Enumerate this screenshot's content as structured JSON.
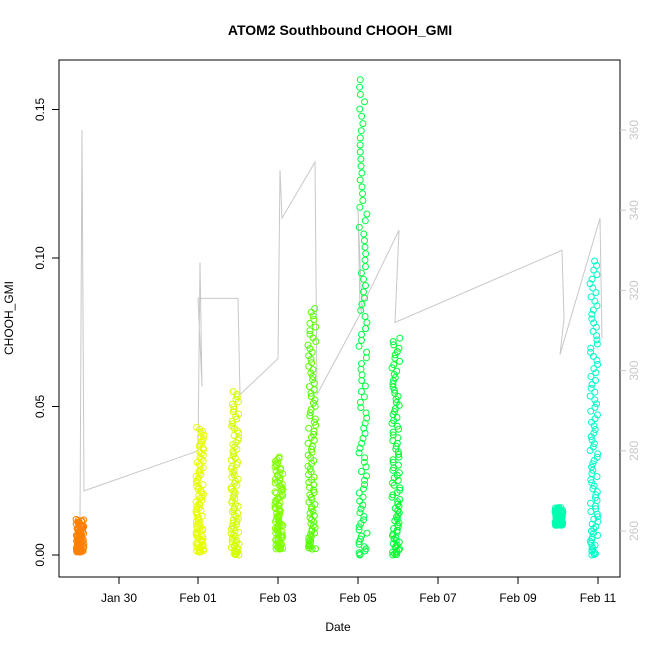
{
  "chart_data": {
    "type": "scatter",
    "title": "ATOM2 Southbound CHOOH_GMI",
    "xlabel": "Date",
    "ylabel": "CHOOH_GMI",
    "x_ticks": [
      "Jan 30",
      "Feb 01",
      "Feb 03",
      "Feb 05",
      "Feb 07",
      "Feb 09",
      "Feb 11"
    ],
    "xlim": [
      "2017-01-29",
      "2017-02-11.4"
    ],
    "ylim": [
      -0.007,
      0.167
    ],
    "y_ticks": [
      "0.00",
      "0.05",
      "0.10",
      "0.15"
    ],
    "y2_ticks": [
      "260",
      "280",
      "300",
      "320",
      "340",
      "360"
    ],
    "y2lim": [
      252,
      374
    ],
    "grid": false,
    "series": [
      {
        "date": "Jan 29",
        "color": "#FF8000",
        "min": 0.001,
        "max": 0.012
      },
      {
        "date": "Feb 01",
        "color": "#E6FF00",
        "min": 0.001,
        "max": 0.043
      },
      {
        "date": "Feb 01",
        "color": "#D4FF00",
        "min": 0.0,
        "max": 0.055
      },
      {
        "date": "Feb 03",
        "color": "#80FF00",
        "min": 0.002,
        "max": 0.033
      },
      {
        "date": "Feb 03",
        "color": "#55FF00",
        "min": 0.002,
        "max": 0.083
      },
      {
        "date": "Feb 05",
        "color": "#00FF40",
        "min": 0.0,
        "max": 0.16
      },
      {
        "date": "Feb 05",
        "color": "#00FF33",
        "min": 0.0,
        "max": 0.073
      },
      {
        "date": "Feb 10",
        "color": "#00FFB0",
        "min": 0.01,
        "max": 0.016
      },
      {
        "date": "Feb 10",
        "color": "#00FFC8",
        "min": 0.0,
        "max": 0.099
      }
    ],
    "secondary_line": {
      "color": "#c8c8c8",
      "points": [
        [
          "Jan 29",
          262
        ],
        [
          "Jan 29",
          360
        ],
        [
          "Jan 29",
          270
        ],
        [
          "Feb 01",
          280
        ],
        [
          "Feb 01",
          327
        ],
        [
          "Feb 01",
          296
        ],
        [
          "Feb 01",
          318
        ],
        [
          "Feb 02",
          318
        ],
        [
          "Feb 02",
          294
        ],
        [
          "Feb 03",
          303
        ],
        [
          "Feb 03",
          350
        ],
        [
          "Feb 03",
          338
        ],
        [
          "Feb 04",
          352
        ],
        [
          "Feb 04",
          294
        ],
        [
          "Feb 05",
          315
        ],
        [
          "Feb 05",
          340
        ],
        [
          "Feb 05",
          315
        ],
        [
          "Feb 06",
          335
        ],
        [
          "Feb 06",
          312
        ],
        [
          "Feb 10",
          330
        ],
        [
          "Feb 10",
          313
        ],
        [
          "Feb 10",
          304
        ],
        [
          "Feb 11",
          338
        ],
        [
          "Feb 11",
          308
        ]
      ]
    }
  }
}
